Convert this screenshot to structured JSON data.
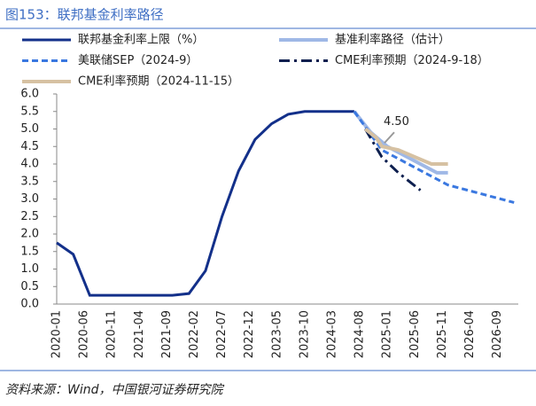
{
  "chart_data": {
    "type": "line",
    "title": "图153：联邦基金利率路径",
    "source": "资料来源：Wind，中国银河证券研究院",
    "categories": [
      "2020-01",
      null,
      null,
      null,
      null,
      "2020-06",
      null,
      null,
      null,
      null,
      "2020-11",
      null,
      null,
      null,
      null,
      "2021-04",
      null,
      null,
      null,
      null,
      "2021-09",
      null,
      null,
      null,
      null,
      "2022-02",
      null,
      null,
      null,
      null,
      "2022-07",
      null,
      null,
      null,
      null,
      "2022-12",
      null,
      null,
      null,
      null,
      "2023-05",
      null,
      null,
      null,
      null,
      "2023-10",
      null,
      null,
      null,
      null,
      "2024-03",
      null,
      null,
      null,
      null,
      "2024-08",
      null,
      null,
      null,
      null,
      "2025-01",
      null,
      null,
      null,
      null,
      "2025-06",
      null,
      null,
      null,
      null,
      "2025-11",
      null,
      null,
      null,
      null,
      "2026-04",
      null,
      null,
      null,
      null,
      "2026-09",
      null,
      null,
      null
    ],
    "ylim": [
      0,
      6
    ],
    "yticks": [
      {
        "value": 0,
        "label": "0.0"
      },
      {
        "value": 0.5,
        "label": "0.5"
      },
      {
        "value": 1,
        "label": "1.0"
      },
      {
        "value": 1.5,
        "label": "1.5"
      },
      {
        "value": 2,
        "label": "2.0"
      },
      {
        "value": 2.5,
        "label": "2.5"
      },
      {
        "value": 3,
        "label": "3.0"
      },
      {
        "value": 3.5,
        "label": "3.5"
      },
      {
        "value": 4,
        "label": "4.0"
      },
      {
        "value": 4.5,
        "label": "4.5"
      },
      {
        "value": 5,
        "label": "5.0"
      },
      {
        "value": 5.5,
        "label": "5.5"
      },
      {
        "value": 6,
        "label": "6.0"
      }
    ],
    "annotation": {
      "text": "4.50",
      "x": "2024-12",
      "value": 4.5
    },
    "series": [
      {
        "name": "联邦基金利率上限（%）",
        "color": "#13308a",
        "style": "solid",
        "width": 3,
        "x": [
          "2020-01",
          "2020-04",
          "2020-07",
          "2020-10",
          "2021-01",
          "2021-04",
          "2021-07",
          "2021-10",
          "2022-01",
          "2022-04",
          "2022-07",
          "2022-10",
          "2023-01",
          "2023-04",
          "2023-07",
          "2023-10",
          "2024-01",
          "2024-04",
          "2024-07"
        ],
        "values": [
          1.75,
          1.42,
          0.25,
          0.25,
          0.25,
          0.25,
          0.25,
          0.25,
          0.3,
          0.95,
          2.5,
          3.8,
          4.7,
          5.15,
          5.42,
          5.5,
          5.5,
          5.5,
          5.5
        ]
      },
      {
        "name": "基准利率路径（估计）",
        "color": "#9fb8e6",
        "style": "solid",
        "width": 4,
        "x": [
          "2024-07",
          "2024-10",
          "2025-01",
          "2025-04",
          "2025-07",
          "2025-10",
          "2025-12"
        ],
        "values": [
          5.5,
          4.9,
          4.5,
          4.25,
          4.0,
          3.75,
          3.75
        ]
      },
      {
        "name": "美联储SEP（2024-9）",
        "color": "#3a78e0",
        "style": "dash",
        "width": 3,
        "x": [
          "2024-07",
          "2024-12",
          "2025-12",
          "2026-12"
        ],
        "values": [
          5.5,
          4.4,
          3.4,
          2.9
        ]
      },
      {
        "name": "CME利率预期（2024-9-18）",
        "color": "#0d1f4f",
        "style": "dashdot",
        "width": 3,
        "x": [
          "2024-09",
          "2024-12",
          "2025-03",
          "2025-07"
        ],
        "values": [
          5.0,
          4.2,
          3.75,
          3.25
        ]
      },
      {
        "name": "CME利率预期（2024-11-15）",
        "color": "#d6c1a2",
        "style": "solid",
        "width": 4,
        "x": [
          "2024-09",
          "2024-11",
          "2024-12",
          "2025-03",
          "2025-06",
          "2025-09",
          "2025-12"
        ],
        "values": [
          5.0,
          4.75,
          4.5,
          4.4,
          4.2,
          4.0,
          4.0
        ]
      }
    ]
  }
}
